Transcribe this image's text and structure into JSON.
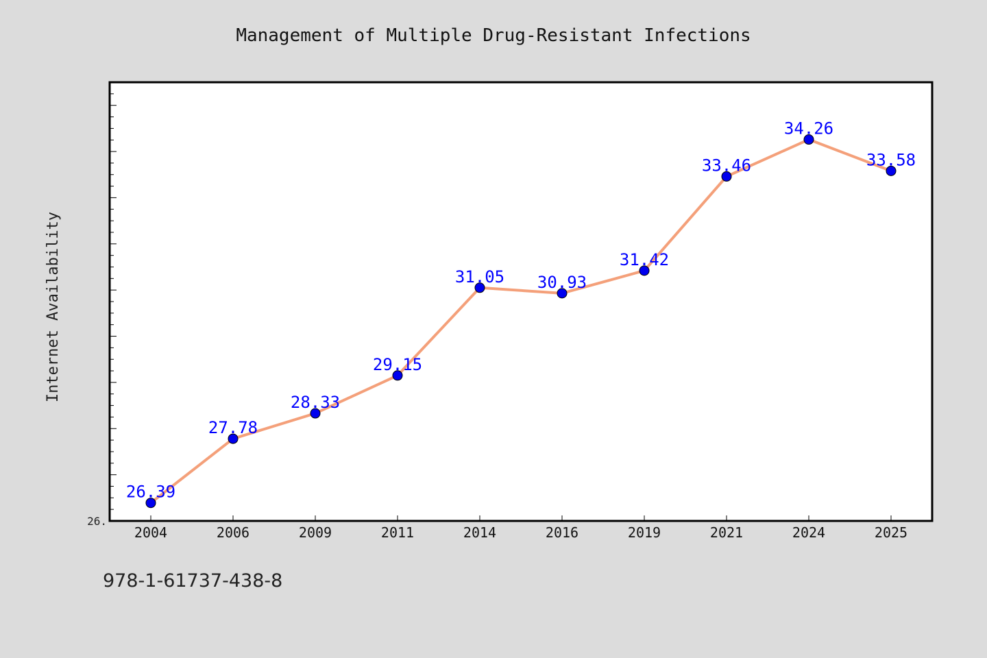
{
  "chart_data": {
    "type": "line",
    "title": "Management of Multiple Drug-Resistant Infections",
    "ylabel": "Internet Availability",
    "xlabel": "",
    "categories": [
      "2004",
      "2006",
      "2009",
      "2011",
      "2014",
      "2016",
      "2019",
      "2021",
      "2024",
      "2025"
    ],
    "values": [
      26.39,
      27.78,
      28.33,
      29.15,
      31.05,
      30.93,
      31.42,
      33.46,
      34.26,
      33.58
    ],
    "data_labels": [
      "26.39",
      "27.78",
      "28.33",
      "29.15",
      "31.05",
      "30.93",
      "31.42",
      "33.46",
      "34.26",
      "33.58"
    ],
    "ylim": [
      26.0,
      35.5
    ],
    "y_tick_labels": [
      "26."
    ],
    "grid": false,
    "line_color": "#f4a07a",
    "marker_color": "#0000ee",
    "label_color": "#0000ff",
    "plot_background": "#ffffff",
    "figure_background": "#dcdcdc"
  },
  "footer_text": "978-1-61737-438-8"
}
